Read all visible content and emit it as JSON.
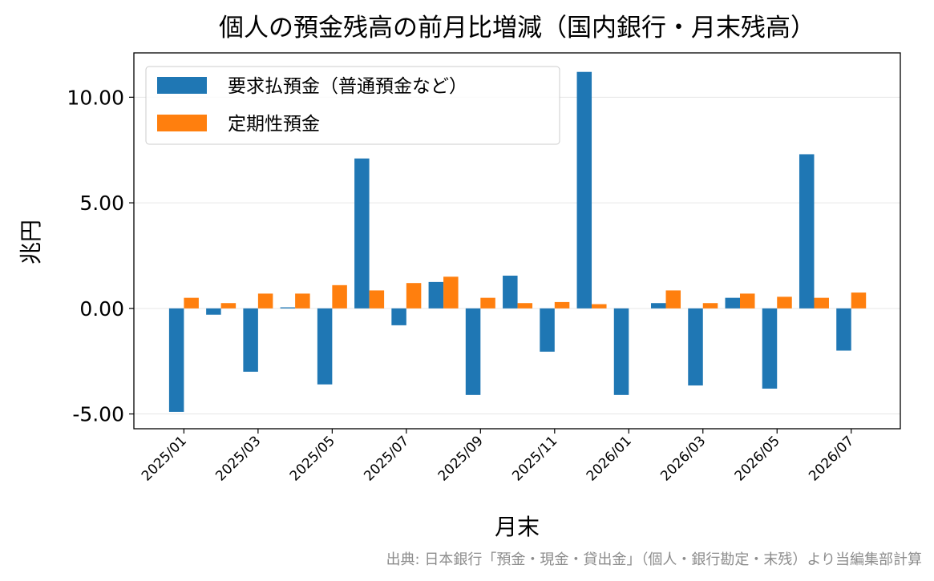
{
  "chart_data": {
    "type": "bar",
    "title": "個人の預金残高の前月比増減（国内銀行・月末残高）",
    "xlabel": "月末",
    "ylabel": "兆円",
    "ylim": [
      -5.7,
      12.1
    ],
    "yticks": [
      -5,
      0,
      5,
      10
    ],
    "ytick_labels": [
      "-5.00",
      "0.00",
      "5.00",
      "10.00"
    ],
    "categories": [
      "2025/01",
      "2025/02",
      "2025/03",
      "2025/04",
      "2025/05",
      "2025/06",
      "2025/07",
      "2025/08",
      "2025/09",
      "2025/10",
      "2025/11",
      "2025/12",
      "2026/01",
      "2026/02",
      "2026/03",
      "2026/04",
      "2026/05",
      "2026/06",
      "2026/07"
    ],
    "xtick_labels": [
      "2025/01",
      "2025/03",
      "2025/05",
      "2025/07",
      "2025/09",
      "2025/11",
      "2026/01",
      "2026/03",
      "2026/05",
      "2026/07"
    ],
    "grid": "y",
    "legend_position": "top-left",
    "series": [
      {
        "name": "要求払預金（普通預金など）",
        "color": "#1f77b4",
        "values": [
          -4.9,
          -0.3,
          -3.0,
          0.05,
          -3.6,
          7.1,
          -0.8,
          1.25,
          -4.1,
          1.55,
          -2.05,
          11.2,
          -4.1,
          0.25,
          -3.65,
          0.5,
          -3.8,
          7.3,
          -2.0
        ]
      },
      {
        "name": "定期性預金",
        "color": "#ff7f0e",
        "values": [
          0.5,
          0.25,
          0.7,
          0.7,
          1.1,
          0.85,
          1.2,
          1.5,
          0.5,
          0.25,
          0.3,
          0.2,
          0.0,
          0.85,
          0.25,
          0.7,
          0.55,
          0.5,
          0.75
        ]
      }
    ]
  },
  "source_note": "出典: 日本銀行「預金・現金・貸出金」（個人・銀行勘定・末残）より当編集部計算"
}
